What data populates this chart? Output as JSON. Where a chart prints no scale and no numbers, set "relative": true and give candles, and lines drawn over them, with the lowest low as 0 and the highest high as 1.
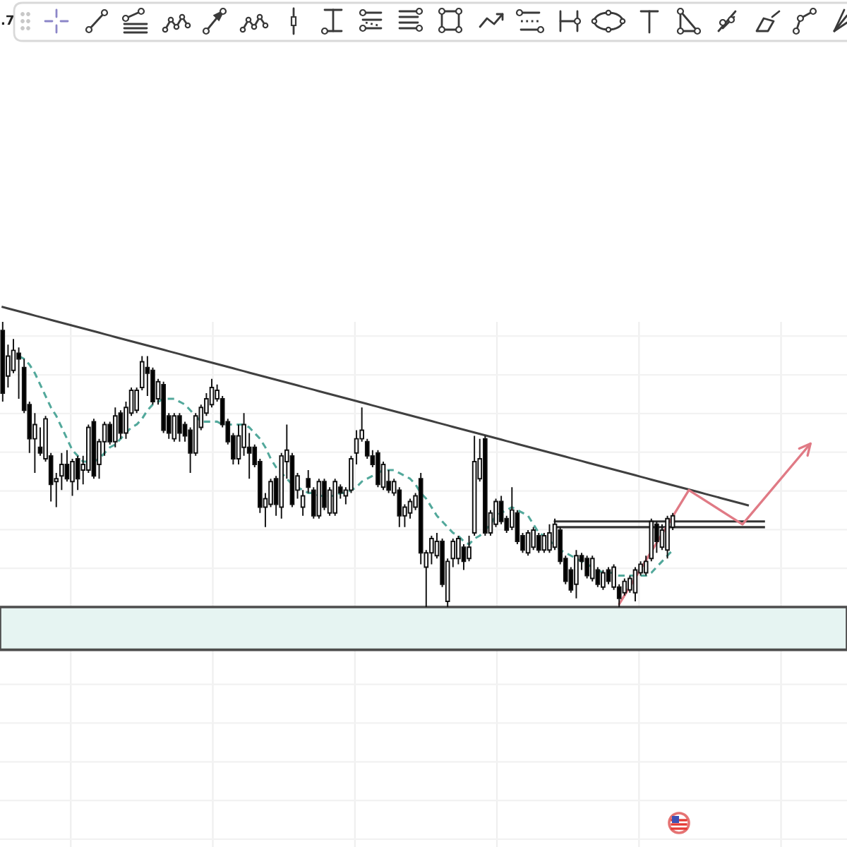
{
  "chart_data": {
    "type": "candlestick",
    "relative": true,
    "grid": true,
    "annotations": [
      ".7"
    ],
    "categories": [
      null,
      null,
      null,
      null,
      null,
      null,
      null,
      null,
      null,
      null,
      null,
      null,
      null,
      null,
      null,
      null,
      null,
      null,
      null,
      null,
      null,
      null,
      null,
      null,
      null,
      null,
      null,
      null,
      null,
      null,
      null,
      null,
      null,
      null,
      null,
      null,
      null,
      null,
      null,
      null,
      null,
      null,
      null,
      null,
      null,
      null,
      null,
      null,
      null,
      null,
      null,
      null,
      null,
      null,
      null,
      null,
      null,
      null,
      null,
      null,
      null,
      null,
      null,
      null,
      null,
      null,
      null,
      null,
      null,
      null,
      null,
      null,
      null,
      null,
      null,
      null,
      null,
      null,
      null,
      null,
      null,
      null,
      null,
      null,
      null,
      null,
      null,
      null,
      null,
      null,
      null,
      null,
      null,
      null,
      null,
      null,
      null,
      null,
      null,
      null,
      null,
      null,
      null,
      null,
      null,
      null,
      null,
      null,
      null,
      null,
      null,
      null,
      null,
      null,
      null,
      null,
      null,
      null,
      null,
      null,
      null,
      null,
      null,
      null,
      null,
      null,
      null,
      null,
      null,
      null,
      null,
      null,
      null,
      null,
      null,
      null,
      null,
      null,
      null,
      null,
      null,
      null,
      null,
      null,
      null,
      null,
      null,
      null,
      null,
      null,
      null,
      null,
      null,
      null,
      null,
      null,
      null,
      null
    ],
    "ohlc": [
      [
        0.97,
        1.0,
        0.72,
        0.75
      ],
      [
        0.81,
        0.92,
        0.77,
        0.88
      ],
      [
        0.83,
        0.94,
        0.82,
        0.9
      ],
      [
        0.89,
        0.91,
        0.73,
        0.87
      ],
      [
        0.84,
        0.87,
        0.68,
        0.69
      ],
      [
        0.71,
        0.72,
        0.54,
        0.59
      ],
      [
        0.59,
        0.68,
        0.47,
        0.64
      ],
      [
        0.56,
        0.63,
        0.53,
        0.54
      ],
      [
        0.52,
        0.67,
        0.51,
        0.66
      ],
      [
        0.53,
        0.54,
        0.37,
        0.43
      ],
      [
        0.44,
        0.47,
        0.35,
        0.45
      ],
      [
        0.46,
        0.54,
        0.41,
        0.5
      ],
      [
        0.5,
        0.55,
        0.44,
        0.45
      ],
      [
        0.44,
        0.52,
        0.39,
        0.51
      ],
      [
        0.52,
        0.53,
        0.41,
        0.45
      ],
      [
        0.48,
        0.53,
        0.43,
        0.5
      ],
      [
        0.48,
        0.64,
        0.47,
        0.63
      ],
      [
        0.65,
        0.66,
        0.45,
        0.46
      ],
      [
        0.5,
        0.59,
        0.45,
        0.58
      ],
      [
        0.58,
        0.65,
        0.53,
        0.64
      ],
      [
        0.64,
        0.65,
        0.57,
        0.58
      ],
      [
        0.58,
        0.7,
        0.56,
        0.67
      ],
      [
        0.68,
        0.69,
        0.59,
        0.61
      ],
      [
        0.61,
        0.72,
        0.59,
        0.7
      ],
      [
        0.68,
        0.77,
        0.67,
        0.76
      ],
      [
        0.69,
        0.77,
        0.68,
        0.76
      ],
      [
        0.77,
        0.88,
        0.76,
        0.86
      ],
      [
        0.84,
        0.88,
        0.74,
        0.82
      ],
      [
        0.83,
        0.84,
        0.71,
        0.72
      ],
      [
        0.73,
        0.8,
        0.71,
        0.79
      ],
      [
        0.78,
        0.79,
        0.61,
        0.62
      ],
      [
        0.67,
        0.68,
        0.59,
        0.61
      ],
      [
        0.59,
        0.68,
        0.58,
        0.67
      ],
      [
        0.67,
        0.68,
        0.58,
        0.61
      ],
      [
        0.64,
        0.65,
        0.58,
        0.6
      ],
      [
        0.62,
        0.63,
        0.47,
        0.54
      ],
      [
        0.54,
        0.68,
        0.53,
        0.67
      ],
      [
        0.63,
        0.71,
        0.62,
        0.7
      ],
      [
        0.68,
        0.75,
        0.67,
        0.73
      ],
      [
        0.71,
        0.8,
        0.7,
        0.77
      ],
      [
        0.73,
        0.78,
        0.72,
        0.76
      ],
      [
        0.73,
        0.74,
        0.63,
        0.64
      ],
      [
        0.65,
        0.66,
        0.57,
        0.58
      ],
      [
        0.6,
        0.61,
        0.5,
        0.52
      ],
      [
        0.52,
        0.64,
        0.5,
        0.6
      ],
      [
        0.56,
        0.68,
        0.53,
        0.64
      ],
      [
        0.56,
        0.61,
        0.45,
        0.54
      ],
      [
        0.56,
        0.57,
        0.49,
        0.5
      ],
      [
        0.51,
        0.52,
        0.33,
        0.35
      ],
      [
        0.35,
        0.4,
        0.28,
        0.38
      ],
      [
        0.36,
        0.45,
        0.35,
        0.44
      ],
      [
        0.45,
        0.46,
        0.32,
        0.36
      ],
      [
        0.35,
        0.54,
        0.31,
        0.53
      ],
      [
        0.51,
        0.64,
        0.45,
        0.55
      ],
      [
        0.53,
        0.54,
        0.35,
        0.36
      ],
      [
        0.41,
        0.47,
        0.38,
        0.46
      ],
      [
        0.35,
        0.41,
        0.32,
        0.39
      ],
      [
        0.45,
        0.48,
        0.4,
        0.42
      ],
      [
        0.41,
        0.42,
        0.31,
        0.32
      ],
      [
        0.32,
        0.45,
        0.31,
        0.44
      ],
      [
        0.44,
        0.45,
        0.34,
        0.35
      ],
      [
        0.33,
        0.42,
        0.32,
        0.41
      ],
      [
        0.33,
        0.45,
        0.32,
        0.44
      ],
      [
        0.42,
        0.43,
        0.38,
        0.4
      ],
      [
        0.39,
        0.42,
        0.36,
        0.41
      ],
      [
        0.41,
        0.53,
        0.4,
        0.52
      ],
      [
        0.54,
        0.62,
        0.5,
        0.59
      ],
      [
        0.59,
        0.7,
        0.58,
        0.62
      ],
      [
        0.58,
        0.59,
        0.52,
        0.53
      ],
      [
        0.53,
        0.55,
        0.49,
        0.5
      ],
      [
        0.54,
        0.55,
        0.42,
        0.43
      ],
      [
        0.42,
        0.51,
        0.41,
        0.5
      ],
      [
        0.44,
        0.48,
        0.4,
        0.41
      ],
      [
        0.4,
        0.45,
        0.39,
        0.44
      ],
      [
        0.41,
        0.42,
        0.28,
        0.32
      ],
      [
        0.32,
        0.36,
        0.28,
        0.35
      ],
      [
        0.33,
        0.38,
        0.31,
        0.37
      ],
      [
        0.35,
        0.4,
        0.34,
        0.39
      ],
      [
        0.45,
        0.47,
        0.15,
        0.19
      ],
      [
        0.14,
        0.2,
        0.0,
        0.19
      ],
      [
        0.19,
        0.25,
        0.15,
        0.24
      ],
      [
        0.18,
        0.26,
        0.17,
        0.23
      ],
      [
        0.23,
        0.24,
        0.07,
        0.08
      ],
      [
        0.02,
        0.17,
        0.0,
        0.16
      ],
      [
        0.17,
        0.24,
        0.14,
        0.23
      ],
      [
        0.17,
        0.25,
        0.15,
        0.24
      ],
      [
        0.21,
        0.22,
        0.13,
        0.16
      ],
      [
        0.17,
        0.25,
        0.16,
        0.21
      ],
      [
        0.26,
        0.6,
        0.25,
        0.51
      ],
      [
        0.45,
        0.59,
        0.44,
        0.52
      ],
      [
        0.59,
        0.6,
        0.25,
        0.26
      ],
      [
        0.26,
        0.34,
        0.25,
        0.33
      ],
      [
        0.29,
        0.38,
        0.28,
        0.37
      ],
      [
        0.37,
        0.39,
        0.29,
        0.3
      ],
      [
        0.31,
        0.32,
        0.26,
        0.27
      ],
      [
        0.28,
        0.42,
        0.27,
        0.34
      ],
      [
        0.33,
        0.34,
        0.22,
        0.23
      ],
      [
        0.25,
        0.26,
        0.19,
        0.2
      ],
      [
        0.19,
        0.27,
        0.18,
        0.26
      ],
      [
        0.21,
        0.28,
        0.2,
        0.27
      ],
      [
        0.25,
        0.26,
        0.19,
        0.2
      ],
      [
        0.2,
        0.26,
        0.19,
        0.25
      ],
      [
        0.2,
        0.29,
        0.19,
        0.26
      ],
      [
        0.21,
        0.31,
        0.2,
        0.29
      ],
      [
        0.27,
        0.28,
        0.15,
        0.16
      ],
      [
        0.17,
        0.18,
        0.08,
        0.09
      ],
      [
        0.13,
        0.14,
        0.05,
        0.06
      ],
      [
        0.08,
        0.2,
        0.03,
        0.18
      ],
      [
        0.18,
        0.19,
        0.13,
        0.16
      ],
      [
        0.17,
        0.18,
        0.1,
        0.11
      ],
      [
        0.1,
        0.18,
        0.09,
        0.17
      ],
      [
        0.13,
        0.14,
        0.07,
        0.08
      ],
      [
        0.07,
        0.13,
        0.06,
        0.12
      ],
      [
        0.13,
        0.14,
        0.08,
        0.09
      ],
      [
        0.07,
        0.15,
        0.06,
        0.14
      ],
      [
        0.07,
        0.08,
        0.0,
        0.03
      ],
      [
        0.05,
        0.1,
        0.04,
        0.09
      ],
      [
        0.06,
        0.11,
        0.05,
        0.1
      ],
      [
        0.05,
        0.14,
        0.02,
        0.13
      ],
      [
        0.12,
        0.16,
        0.11,
        0.15
      ],
      [
        0.12,
        0.18,
        0.11,
        0.16
      ],
      [
        0.17,
        0.31,
        0.16,
        0.3
      ],
      [
        0.29,
        0.3,
        0.19,
        0.23
      ],
      [
        0.21,
        0.29,
        0.2,
        0.27
      ],
      [
        0.2,
        0.32,
        0.17,
        0.31
      ],
      [
        0.28,
        0.33,
        0.27,
        0.32
      ],
      null,
      null,
      null,
      null,
      null,
      null,
      null,
      null,
      null,
      null,
      null,
      null,
      null,
      null,
      null,
      null,
      null,
      null,
      null,
      null,
      null,
      null,
      null,
      null,
      null,
      null,
      null,
      null,
      null,
      null,
      null,
      null
    ],
    "colors": [
      "#000000",
      "#ffffff",
      "#ffffff",
      "#000000",
      "#000000",
      "#000000",
      "#ffffff",
      "#000000",
      "#ffffff",
      "#000000",
      "#ffffff",
      "#ffffff",
      "#000000",
      "#ffffff",
      "#000000",
      "#ffffff",
      "#ffffff",
      "#000000",
      "#ffffff",
      "#ffffff",
      "#000000",
      "#ffffff",
      "#000000",
      "#ffffff",
      "#ffffff",
      "#ffffff",
      "#ffffff",
      "#000000",
      "#000000",
      "#ffffff",
      "#000000",
      "#000000",
      "#ffffff",
      "#000000",
      "#000000",
      "#000000",
      "#ffffff",
      "#ffffff",
      "#ffffff",
      "#ffffff",
      "#ffffff",
      "#000000",
      "#000000",
      "#000000",
      "#ffffff",
      "#ffffff",
      "#000000",
      "#000000",
      "#000000",
      "#ffffff",
      "#ffffff",
      "#000000",
      "#ffffff",
      "#ffffff",
      "#000000",
      "#ffffff",
      "#ffffff",
      "#000000",
      "#000000",
      "#ffffff",
      "#000000",
      "#ffffff",
      "#ffffff",
      "#000000",
      "#ffffff",
      "#ffffff",
      "#ffffff",
      "#ffffff",
      "#000000",
      "#000000",
      "#000000",
      "#ffffff",
      "#000000",
      "#ffffff",
      "#000000",
      "#ffffff",
      "#ffffff",
      "#ffffff",
      "#000000",
      "#ffffff",
      "#ffffff",
      "#ffffff",
      "#000000",
      "#ffffff",
      "#ffffff",
      "#ffffff",
      "#000000",
      "#ffffff",
      "#ffffff",
      "#ffffff",
      "#000000",
      "#ffffff",
      "#ffffff",
      "#000000",
      "#000000",
      "#ffffff",
      "#000000",
      "#000000",
      "#ffffff",
      "#ffffff",
      "#000000",
      "#ffffff",
      "#ffffff",
      "#ffffff",
      "#000000",
      "#000000",
      "#000000",
      "#ffffff",
      "#000000",
      "#000000",
      "#ffffff",
      "#000000",
      "#ffffff",
      "#000000",
      "#ffffff",
      "#000000",
      "#ffffff",
      "#ffffff",
      "#ffffff",
      "#ffffff",
      "#ffffff",
      "#ffffff",
      "#000000",
      "#ffffff",
      "#ffffff",
      "#ffffff",
      null,
      null,
      null,
      null,
      null,
      null,
      null,
      null,
      null,
      null,
      null,
      null,
      null,
      null,
      null,
      null,
      null,
      null,
      null,
      null,
      null,
      null,
      null,
      null,
      null,
      null,
      null,
      null,
      null,
      null,
      null,
      null
    ],
    "series": [
      {
        "type": "line",
        "color": "#52a89b",
        "line_style": "dashed",
        "values": [
          null,
          null,
          null,
          0.88,
          0.87,
          0.85,
          0.82,
          0.78,
          0.74,
          0.7,
          0.67,
          0.63,
          0.59,
          0.55,
          0.53,
          0.51,
          0.51,
          0.51,
          0.52,
          0.54,
          0.56,
          0.57,
          0.59,
          0.61,
          0.63,
          0.64,
          0.66,
          0.69,
          0.71,
          0.72,
          0.73,
          0.73,
          0.73,
          0.72,
          0.71,
          0.69,
          0.67,
          0.65,
          0.65,
          0.65,
          0.65,
          0.64,
          0.64,
          0.64,
          0.64,
          0.64,
          0.63,
          0.61,
          0.59,
          0.56,
          0.52,
          0.49,
          0.47,
          0.45,
          0.43,
          0.42,
          0.41,
          0.4,
          0.4,
          0.39,
          0.39,
          0.39,
          0.39,
          0.4,
          0.4,
          0.41,
          0.42,
          0.44,
          0.45,
          0.46,
          0.47,
          0.48,
          0.48,
          0.48,
          0.47,
          0.46,
          0.45,
          0.43,
          0.4,
          0.38,
          0.35,
          0.32,
          0.3,
          0.28,
          0.26,
          0.25,
          0.23,
          0.22,
          0.24,
          0.25,
          0.27,
          0.29,
          0.32,
          0.33,
          0.34,
          0.35,
          0.34,
          0.33,
          0.32,
          0.29,
          0.26,
          0.25,
          0.23,
          0.22,
          0.2,
          0.19,
          0.18,
          0.17,
          0.16,
          0.15,
          0.14,
          0.13,
          0.12,
          0.12,
          0.12,
          0.11,
          0.11,
          0.11,
          0.11,
          0.11,
          0.11,
          0.12,
          0.14,
          0.16,
          0.18,
          0.2,
          null,
          null,
          null,
          null,
          null,
          null,
          null,
          null,
          null,
          null,
          null,
          null,
          null,
          null,
          null,
          null,
          null,
          null,
          null,
          null,
          null,
          null,
          null,
          null,
          null,
          null,
          null,
          null,
          null,
          null,
          null,
          null
        ]
      },
      {
        "type": "line",
        "color": "#404040",
        "line_style": "solid",
        "values": [
          1.052,
          1.047,
          1.042,
          1.037,
          1.032,
          1.027,
          1.022,
          1.017,
          1.012,
          1.007,
          1.002,
          0.997,
          0.992,
          0.987,
          0.982,
          0.977,
          0.972,
          0.967,
          0.962,
          0.957,
          0.952,
          0.947,
          0.942,
          0.937,
          0.932,
          0.927,
          0.922,
          0.917,
          0.912,
          0.907,
          0.902,
          0.897,
          0.892,
          0.887,
          0.882,
          0.877,
          0.872,
          0.867,
          0.862,
          0.857,
          0.852,
          0.847,
          0.842,
          0.837,
          0.832,
          0.827,
          0.822,
          0.817,
          0.812,
          0.807,
          0.802,
          0.797,
          0.792,
          0.787,
          0.782,
          0.777,
          0.772,
          0.767,
          0.762,
          0.757,
          0.752,
          0.747,
          0.742,
          0.737,
          0.732,
          0.727,
          0.722,
          0.717,
          0.712,
          0.707,
          0.702,
          0.697,
          0.692,
          0.687,
          0.682,
          0.677,
          0.672,
          0.667,
          0.662,
          0.657,
          0.652,
          0.647,
          0.642,
          0.637,
          0.632,
          0.627,
          0.622,
          0.617,
          0.612,
          0.607,
          0.602,
          0.597,
          0.592,
          0.587,
          0.582,
          0.577,
          0.572,
          0.567,
          0.562,
          0.557,
          0.552,
          0.547,
          0.542,
          0.537,
          0.532,
          0.527,
          0.522,
          0.517,
          0.512,
          0.507,
          0.502,
          0.497,
          0.492,
          0.487,
          0.482,
          0.477,
          0.472,
          0.467,
          0.462,
          0.457,
          0.452,
          0.447,
          0.442,
          0.437,
          0.432,
          0.427,
          0.422,
          0.417,
          0.412,
          0.407,
          0.402,
          0.397,
          0.392,
          0.387,
          0.382,
          0.377,
          0.372,
          0.367,
          0.362,
          0.357,
          null,
          null,
          null,
          null,
          null,
          null,
          null,
          null,
          null,
          null,
          null,
          null,
          null,
          null,
          null,
          null,
          null,
          null
        ]
      },
      {
        "type": "line",
        "color": "#333333",
        "line_style": "solid",
        "values": [
          null,
          null,
          null,
          null,
          null,
          null,
          null,
          null,
          null,
          null,
          null,
          null,
          null,
          null,
          null,
          null,
          null,
          null,
          null,
          null,
          null,
          null,
          null,
          null,
          null,
          null,
          null,
          null,
          null,
          null,
          null,
          null,
          null,
          null,
          null,
          null,
          null,
          null,
          null,
          null,
          null,
          null,
          null,
          null,
          null,
          null,
          null,
          null,
          null,
          null,
          null,
          null,
          null,
          null,
          null,
          null,
          null,
          null,
          null,
          null,
          null,
          null,
          null,
          null,
          null,
          null,
          null,
          null,
          null,
          null,
          null,
          null,
          null,
          null,
          null,
          null,
          null,
          null,
          null,
          null,
          null,
          null,
          null,
          null,
          null,
          null,
          null,
          null,
          null,
          null,
          null,
          null,
          null,
          null,
          null,
          null,
          null,
          null,
          null,
          null,
          null,
          null,
          null,
          0.3,
          0.3,
          0.3,
          0.3,
          0.3,
          0.3,
          0.3,
          0.3,
          0.3,
          0.3,
          0.3,
          0.3,
          0.3,
          0.3,
          0.3,
          0.3,
          0.3,
          0.3,
          0.3,
          0.3,
          0.3,
          0.3,
          0.3,
          0.3,
          0.3,
          0.3,
          0.3,
          0.3,
          0.3,
          0.3,
          0.3,
          0.3,
          0.3,
          0.3,
          0.3,
          0.3,
          0.3,
          0.3,
          0.3,
          0.3,
          null,
          null,
          null,
          null,
          null,
          null,
          null,
          null,
          null,
          null,
          null,
          null,
          null,
          null,
          null
        ]
      },
      {
        "type": "line",
        "color": "#333333",
        "line_style": "solid",
        "values": [
          null,
          null,
          null,
          null,
          null,
          null,
          null,
          null,
          null,
          null,
          null,
          null,
          null,
          null,
          null,
          null,
          null,
          null,
          null,
          null,
          null,
          null,
          null,
          null,
          null,
          null,
          null,
          null,
          null,
          null,
          null,
          null,
          null,
          null,
          null,
          null,
          null,
          null,
          null,
          null,
          null,
          null,
          null,
          null,
          null,
          null,
          null,
          null,
          null,
          null,
          null,
          null,
          null,
          null,
          null,
          null,
          null,
          null,
          null,
          null,
          null,
          null,
          null,
          null,
          null,
          null,
          null,
          null,
          null,
          null,
          null,
          null,
          null,
          null,
          null,
          null,
          null,
          null,
          null,
          null,
          null,
          null,
          null,
          null,
          null,
          null,
          null,
          null,
          null,
          null,
          null,
          null,
          null,
          null,
          null,
          null,
          null,
          null,
          null,
          null,
          null,
          null,
          null,
          0.28,
          0.28,
          0.28,
          0.28,
          0.28,
          0.28,
          0.28,
          0.28,
          0.28,
          0.28,
          0.28,
          0.28,
          0.28,
          0.28,
          0.28,
          0.28,
          0.28,
          0.28,
          0.28,
          0.28,
          0.28,
          0.28,
          0.28,
          0.28,
          0.28,
          0.28,
          0.28,
          0.28,
          0.28,
          0.28,
          0.28,
          0.28,
          0.28,
          0.28,
          0.28,
          0.28,
          0.28,
          0.28,
          0.28,
          0.28,
          null,
          null,
          null,
          null,
          null,
          null,
          null,
          null,
          null,
          null,
          null,
          null,
          null,
          null,
          null
        ]
      }
    ],
    "bands": [
      {
        "axis": "y",
        "from": -0.15,
        "to": 0.0,
        "color": "#e6f4f2"
      }
    ]
  }
}
